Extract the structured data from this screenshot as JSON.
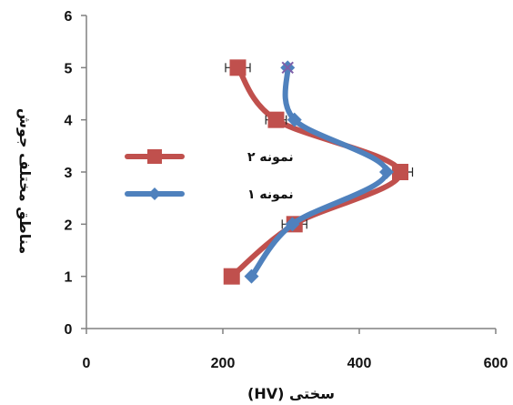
{
  "chart_data": {
    "type": "scatter",
    "xlabel": "سختی (HV)",
    "ylabel": "مناطق مختلف جوش",
    "xlim": [
      0,
      600
    ],
    "ylim": [
      0,
      6
    ],
    "x_ticks": [
      "0",
      "200",
      "400",
      "600"
    ],
    "y_ticks": [
      "0",
      "1",
      "2",
      "3",
      "4",
      "5",
      "6"
    ],
    "grid": false,
    "legend_position": "left",
    "series": [
      {
        "name": "نمونه ۲",
        "color": "#c0504d",
        "marker": "square",
        "points": [
          {
            "x": 213,
            "y": 1
          },
          {
            "x": 305,
            "y": 2
          },
          {
            "x": 460,
            "y": 3
          },
          {
            "x": 278,
            "y": 4
          },
          {
            "x": 222,
            "y": 5
          }
        ],
        "x_error": [
          0,
          18,
          18,
          15,
          18
        ]
      },
      {
        "name": "نمونه ۱",
        "color": "#4f81bd",
        "marker": "diamond",
        "points": [
          {
            "x": 242,
            "y": 1
          },
          {
            "x": 302,
            "y": 2
          },
          {
            "x": 440,
            "y": 3
          },
          {
            "x": 305,
            "y": 4
          },
          {
            "x": 295,
            "y": 5
          }
        ],
        "x_error": [
          0,
          0,
          0,
          0,
          0
        ]
      }
    ]
  }
}
